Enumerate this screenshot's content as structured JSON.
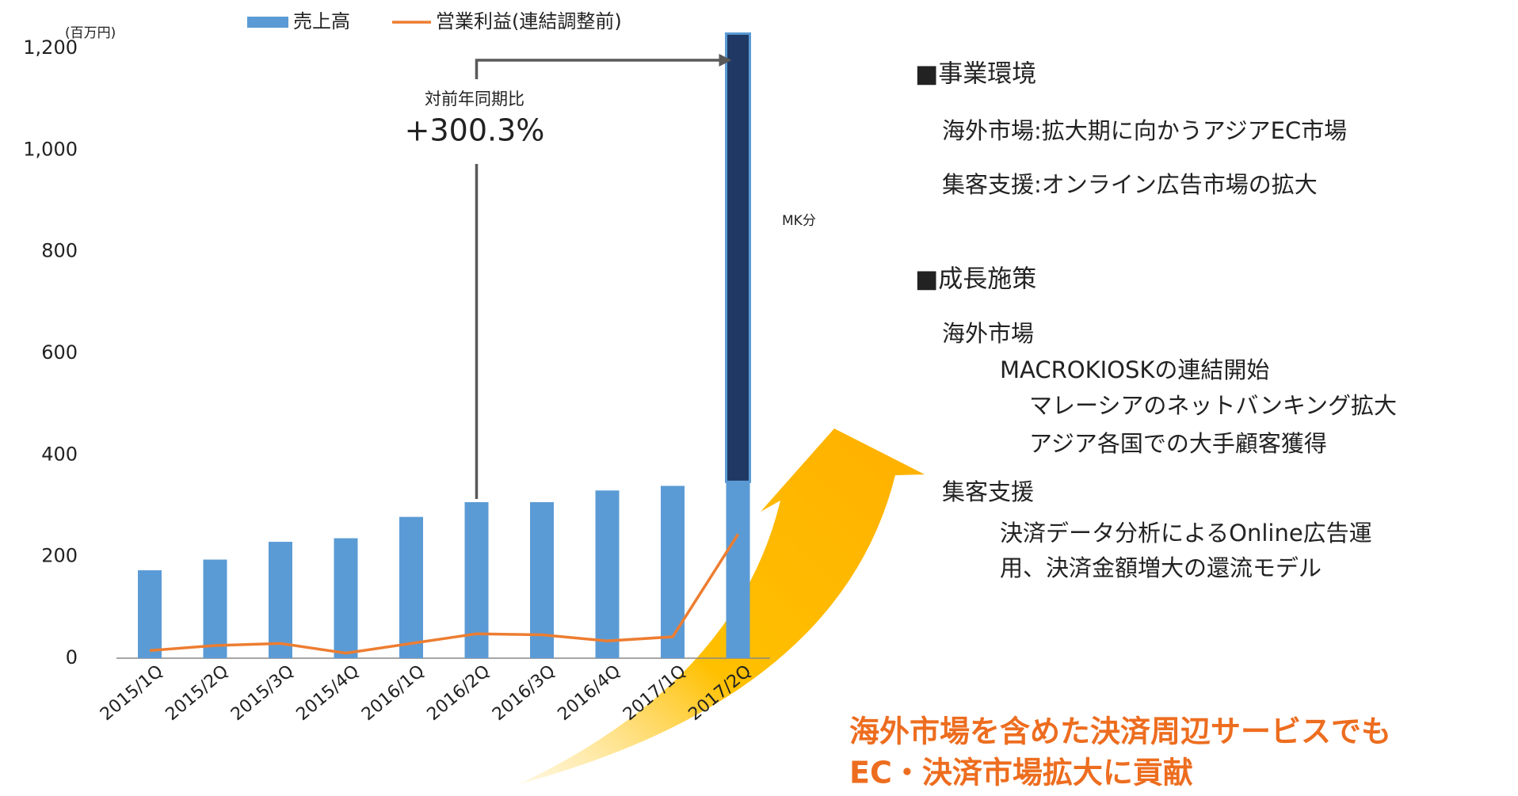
{
  "chart_data": {
    "type": "bar",
    "unit_label": "(百万円)",
    "categories": [
      "2015/1Q",
      "2015/2Q",
      "2015/3Q",
      "2015/4Q",
      "2016/1Q",
      "2016/2Q",
      "2016/3Q",
      "2016/4Q",
      "2017/1Q",
      "2017/2Q"
    ],
    "series": [
      {
        "name": "売上高",
        "type": "bar",
        "color": "#5b9bd5",
        "values": [
          173,
          194,
          229,
          236,
          278,
          307,
          307,
          330,
          339,
          347
        ]
      },
      {
        "name": "MK分",
        "type": "bar",
        "stacked": true,
        "color": "#1f3864",
        "values": [
          null,
          null,
          null,
          null,
          null,
          null,
          null,
          null,
          null,
          882
        ]
      },
      {
        "name": "営業利益(連結調整前)",
        "type": "line",
        "color": "#ed7d31",
        "values": [
          15,
          25,
          29,
          10,
          29,
          48,
          46,
          34,
          42,
          244
        ]
      }
    ],
    "ylim": [
      0,
      1200
    ],
    "yticks": [
      0,
      200,
      400,
      600,
      800,
      {
        "value": 1000,
        "label": "1,000"
      },
      {
        "value": 1200,
        "label": "1,200"
      }
    ],
    "annotation": {
      "label": "対前年同期比",
      "value": "+300.3%"
    }
  },
  "side_text": {
    "sections": [
      {
        "heading": "■事業環境",
        "lines": [
          "海外市場:拡大期に向かうアジアEC市場",
          "集客支援:オンライン広告市場の拡大"
        ]
      },
      {
        "heading": "■成長施策",
        "lines": [
          "海外市場",
          "MACROKIOSKの連結開始",
          "マレーシアのネットバンキング拡大",
          "アジア各国での大手顧客獲得",
          "集客支援",
          "決済データ分析によるOnline広告運",
          "用、決済金額増大の還流モデル"
        ]
      }
    ],
    "conclusion": [
      "海外市場を含めた決済周辺サービスでも",
      "EC・決済市場拡大に貢献"
    ]
  }
}
